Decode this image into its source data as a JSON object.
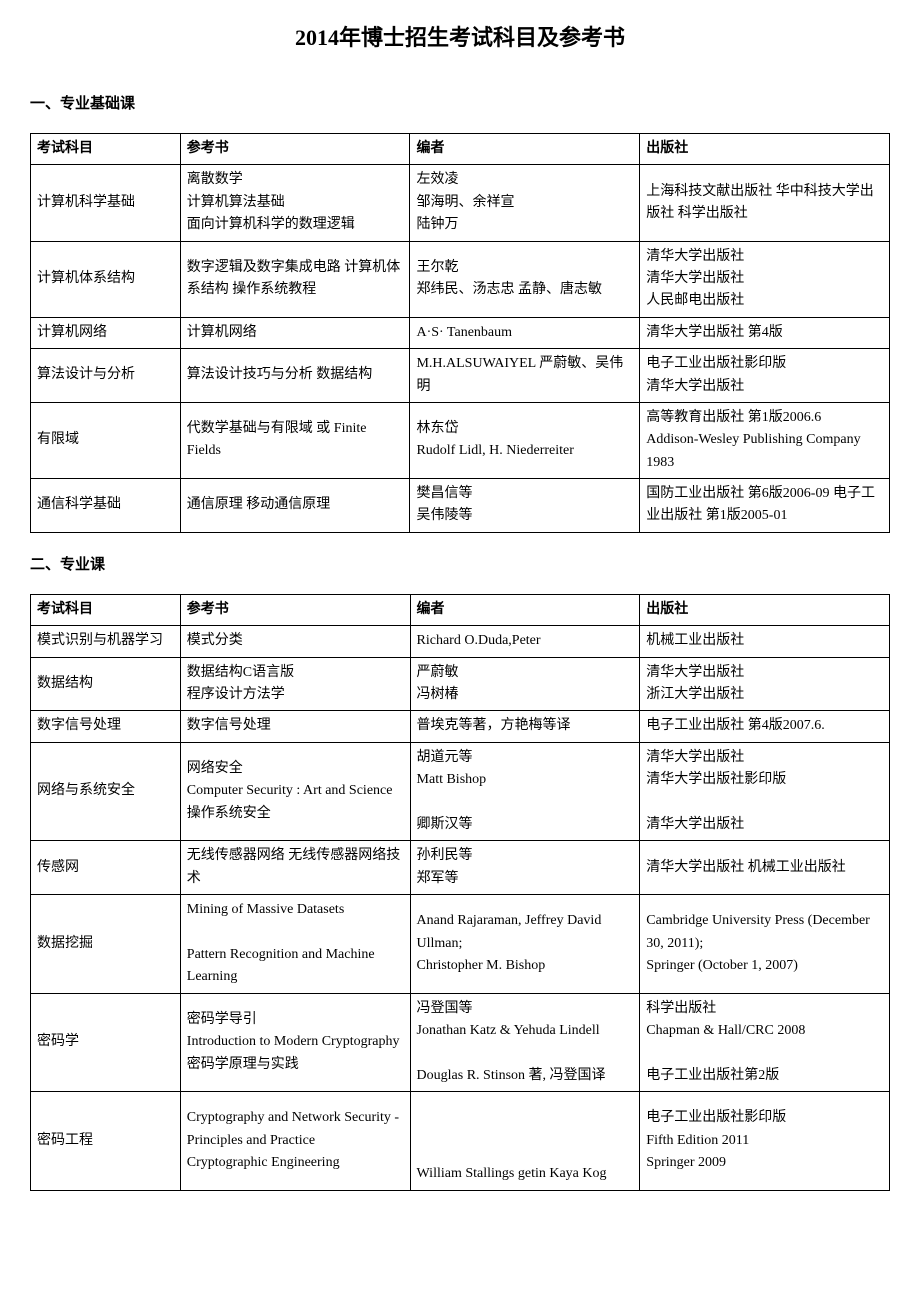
{
  "page_title": "2014年博士招生考试科目及参考书",
  "section1_title": "一、专业基础课",
  "section2_title": "二、专业课",
  "headers": {
    "subject": "考试科目",
    "book": "参考书",
    "author": "编者",
    "publisher": "出版社"
  },
  "table1": [
    {
      "subject": "计算机科学基础",
      "book": "离散数学\n计算机算法基础\n面向计算机科学的数理逻辑",
      "author": "左效凌\n邹海明、余祥宣\n陆钟万",
      "publisher": "上海科技文献出版社 华中科技大学出版社 科学出版社"
    },
    {
      "subject": "计算机体系结构",
      "book": "数字逻辑及数字集成电路 计算机体系结构 操作系统教程",
      "author": "王尔乾\n郑纬民、汤志忠 孟静、唐志敏",
      "publisher": "清华大学出版社\n清华大学出版社\n人民邮电出版社"
    },
    {
      "subject": "计算机网络",
      "book": "计算机网络",
      "author": "A·S· Tanenbaum",
      "publisher": "清华大学出版社 第4版"
    },
    {
      "subject": "算法设计与分析",
      "book": "算法设计技巧与分析 数据结构",
      "author": "M.H.ALSUWAIYEL 严蔚敏、吴伟明",
      "publisher": "电子工业出版社影印版\n清华大学出版社"
    },
    {
      "subject": "有限域",
      "book": "代数学基础与有限域 或 Finite Fields",
      "author": "林东岱\nRudolf Lidl, H. Niederreiter",
      "publisher": "高等教育出版社 第1版2006.6\nAddison-Wesley Publishing Company 1983"
    },
    {
      "subject": "通信科学基础",
      "book": "通信原理 移动通信原理",
      "author": "樊昌信等\n吴伟陵等",
      "publisher": "国防工业出版社 第6版2006-09 电子工业出版社 第1版2005-01"
    }
  ],
  "table2": [
    {
      "subject": "模式识别与机器学习",
      "book": "模式分类",
      "author": "Richard O.Duda,Peter",
      "publisher": "机械工业出版社"
    },
    {
      "subject": "数据结构",
      "book": "数据结构C语言版\n程序设计方法学",
      "author": "严蔚敏\n冯树椿",
      "publisher": "清华大学出版社\n浙江大学出版社"
    },
    {
      "subject": "数字信号处理",
      "book": "数字信号处理",
      "author": "普埃克等著，方艳梅等译",
      "publisher": "电子工业出版社 第4版2007.6."
    },
    {
      "subject": "网络与系统安全",
      "book": "网络安全\nComputer Security : Art and Science\n操作系统安全",
      "author": "胡道元等\nMatt Bishop\n\n卿斯汉等",
      "publisher": "清华大学出版社\n清华大学出版社影印版\n\n清华大学出版社"
    },
    {
      "subject": "传感网",
      "book": "无线传感器网络 无线传感器网络技术",
      "author": "孙利民等\n郑军等",
      "publisher": "清华大学出版社 机械工业出版社"
    },
    {
      "subject": "数据挖掘",
      "book": "Mining of Massive Datasets\n\nPattern Recognition and Machine Learning",
      "author": "Anand Rajaraman, Jeffrey David Ullman;\nChristopher M. Bishop",
      "publisher": "Cambridge   University   Press (December 30, 2011);\nSpringer (October 1, 2007)"
    },
    {
      "subject": "密码学",
      "book": "密码学导引\nIntroduction   to   Modern   Cryptography\n密码学原理与实践",
      "author": "冯登国等\nJonathan Katz & Yehuda Lindell\n\nDouglas R. Stinson 著, 冯登国译",
      "publisher": "科学出版社\nChapman & Hall/CRC 2008\n\n电子工业出版社第2版"
    },
    {
      "subject": "密码工程",
      "book": "Cryptography and Network  Security - Principles and  Practice\nCryptographic Engineering",
      "author": "\n\n\nWilliam Stallings getin Kaya Kog",
      "publisher": "电子工业出版社影印版\nFifth Edition 2011\nSpringer 2009"
    }
  ]
}
